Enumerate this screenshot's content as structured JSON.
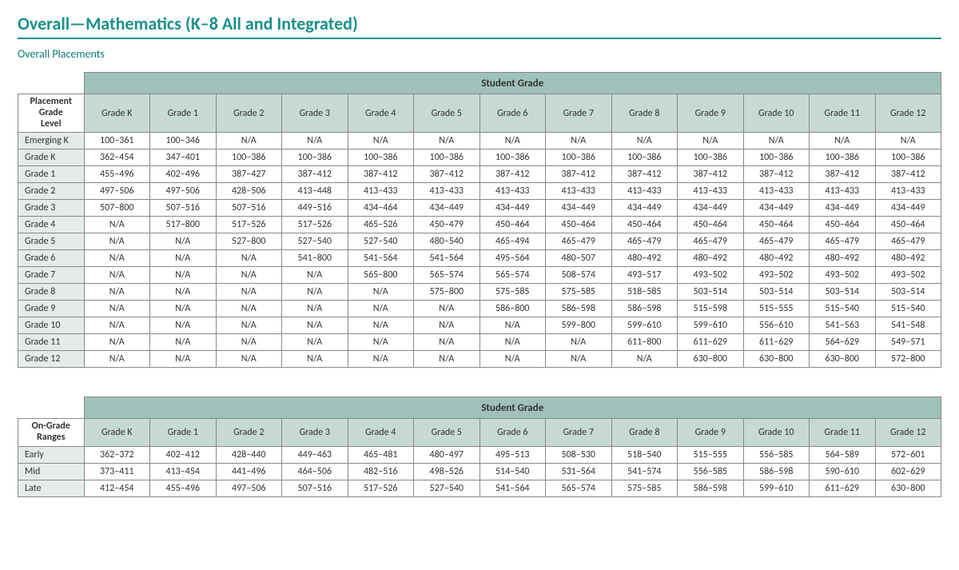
{
  "page": {
    "title": "Overall—Mathematics (K–8 All and Integrated)",
    "subtitle": "Overall Placements"
  },
  "style": {
    "title_color": "#1a9089",
    "header_bg_dark": "#9fc1b9",
    "header_bg_light": "#c7d9d3",
    "row_label_bg": "#e4ebe8",
    "border_color": "#888888",
    "body_font_size": 12
  },
  "placements_table": {
    "corner_label": "Placement Grade Level",
    "super_header": "Student Grade",
    "columns": [
      "Grade K",
      "Grade 1",
      "Grade 2",
      "Grade 3",
      "Grade 4",
      "Grade 5",
      "Grade 6",
      "Grade 7",
      "Grade 8",
      "Grade 9",
      "Grade 10",
      "Grade 11",
      "Grade 12"
    ],
    "rows": [
      {
        "label": "Emerging K",
        "cells": [
          "100–361",
          "100–346",
          "N/A",
          "N/A",
          "N/A",
          "N/A",
          "N/A",
          "N/A",
          "N/A",
          "N/A",
          "N/A",
          "N/A",
          "N/A"
        ]
      },
      {
        "label": "Grade K",
        "cells": [
          "362–454",
          "347–401",
          "100–386",
          "100–386",
          "100–386",
          "100–386",
          "100–386",
          "100–386",
          "100–386",
          "100–386",
          "100–386",
          "100–386",
          "100–386"
        ]
      },
      {
        "label": "Grade 1",
        "cells": [
          "455–496",
          "402–496",
          "387–427",
          "387–412",
          "387–412",
          "387–412",
          "387–412",
          "387–412",
          "387–412",
          "387–412",
          "387–412",
          "387–412",
          "387–412"
        ]
      },
      {
        "label": "Grade 2",
        "cells": [
          "497–506",
          "497–506",
          "428–506",
          "413–448",
          "413–433",
          "413–433",
          "413–433",
          "413–433",
          "413–433",
          "413–433",
          "413–433",
          "413–433",
          "413–433"
        ]
      },
      {
        "label": "Grade 3",
        "cells": [
          "507–800",
          "507–516",
          "507–516",
          "449–516",
          "434–464",
          "434–449",
          "434–449",
          "434–449",
          "434–449",
          "434–449",
          "434–449",
          "434–449",
          "434–449"
        ]
      },
      {
        "label": "Grade 4",
        "cells": [
          "N/A",
          "517–800",
          "517–526",
          "517–526",
          "465–526",
          "450–479",
          "450–464",
          "450–464",
          "450–464",
          "450–464",
          "450–464",
          "450–464",
          "450–464"
        ]
      },
      {
        "label": "Grade 5",
        "cells": [
          "N/A",
          "N/A",
          "527–800",
          "527–540",
          "527–540",
          "480–540",
          "465–494",
          "465–479",
          "465–479",
          "465–479",
          "465–479",
          "465–479",
          "465–479"
        ]
      },
      {
        "label": "Grade 6",
        "cells": [
          "N/A",
          "N/A",
          "N/A",
          "541–800",
          "541–564",
          "541–564",
          "495–564",
          "480–507",
          "480–492",
          "480–492",
          "480–492",
          "480–492",
          "480–492"
        ]
      },
      {
        "label": "Grade 7",
        "cells": [
          "N/A",
          "N/A",
          "N/A",
          "N/A",
          "565–800",
          "565–574",
          "565–574",
          "508–574",
          "493–517",
          "493–502",
          "493–502",
          "493–502",
          "493–502"
        ]
      },
      {
        "label": "Grade 8",
        "cells": [
          "N/A",
          "N/A",
          "N/A",
          "N/A",
          "N/A",
          "575–800",
          "575–585",
          "575–585",
          "518–585",
          "503–514",
          "503–514",
          "503–514",
          "503–514"
        ]
      },
      {
        "label": "Grade 9",
        "cells": [
          "N/A",
          "N/A",
          "N/A",
          "N/A",
          "N/A",
          "N/A",
          "586–800",
          "586–598",
          "586–598",
          "515–598",
          "515–555",
          "515–540",
          "515–540"
        ]
      },
      {
        "label": "Grade 10",
        "cells": [
          "N/A",
          "N/A",
          "N/A",
          "N/A",
          "N/A",
          "N/A",
          "N/A",
          "599–800",
          "599–610",
          "599–610",
          "556–610",
          "541–563",
          "541–548"
        ]
      },
      {
        "label": "Grade 11",
        "cells": [
          "N/A",
          "N/A",
          "N/A",
          "N/A",
          "N/A",
          "N/A",
          "N/A",
          "N/A",
          "611–800",
          "611–629",
          "611–629",
          "564–629",
          "549–571"
        ]
      },
      {
        "label": "Grade 12",
        "cells": [
          "N/A",
          "N/A",
          "N/A",
          "N/A",
          "N/A",
          "N/A",
          "N/A",
          "N/A",
          "N/A",
          "630–800",
          "630–800",
          "630–800",
          "572–800"
        ]
      }
    ]
  },
  "ongrade_table": {
    "corner_label": "On-Grade Ranges",
    "super_header": "Student Grade",
    "columns": [
      "Grade K",
      "Grade 1",
      "Grade 2",
      "Grade 3",
      "Grade 4",
      "Grade 5",
      "Grade 6",
      "Grade 7",
      "Grade 8",
      "Grade 9",
      "Grade 10",
      "Grade 11",
      "Grade 12"
    ],
    "rows": [
      {
        "label": "Early",
        "cells": [
          "362–372",
          "402–412",
          "428–440",
          "449–463",
          "465–481",
          "480–497",
          "495–513",
          "508–530",
          "518–540",
          "515–555",
          "556–585",
          "564–589",
          "572–601"
        ]
      },
      {
        "label": "Mid",
        "cells": [
          "373–411",
          "413–454",
          "441–496",
          "464–506",
          "482–516",
          "498–526",
          "514–540",
          "531–564",
          "541–574",
          "556–585",
          "586–598",
          "590–610",
          "602–629"
        ]
      },
      {
        "label": "Late",
        "cells": [
          "412–454",
          "455–496",
          "497–506",
          "507–516",
          "517–526",
          "527–540",
          "541–564",
          "565–574",
          "575–585",
          "586–598",
          "599–610",
          "611–629",
          "630–800"
        ]
      }
    ]
  }
}
